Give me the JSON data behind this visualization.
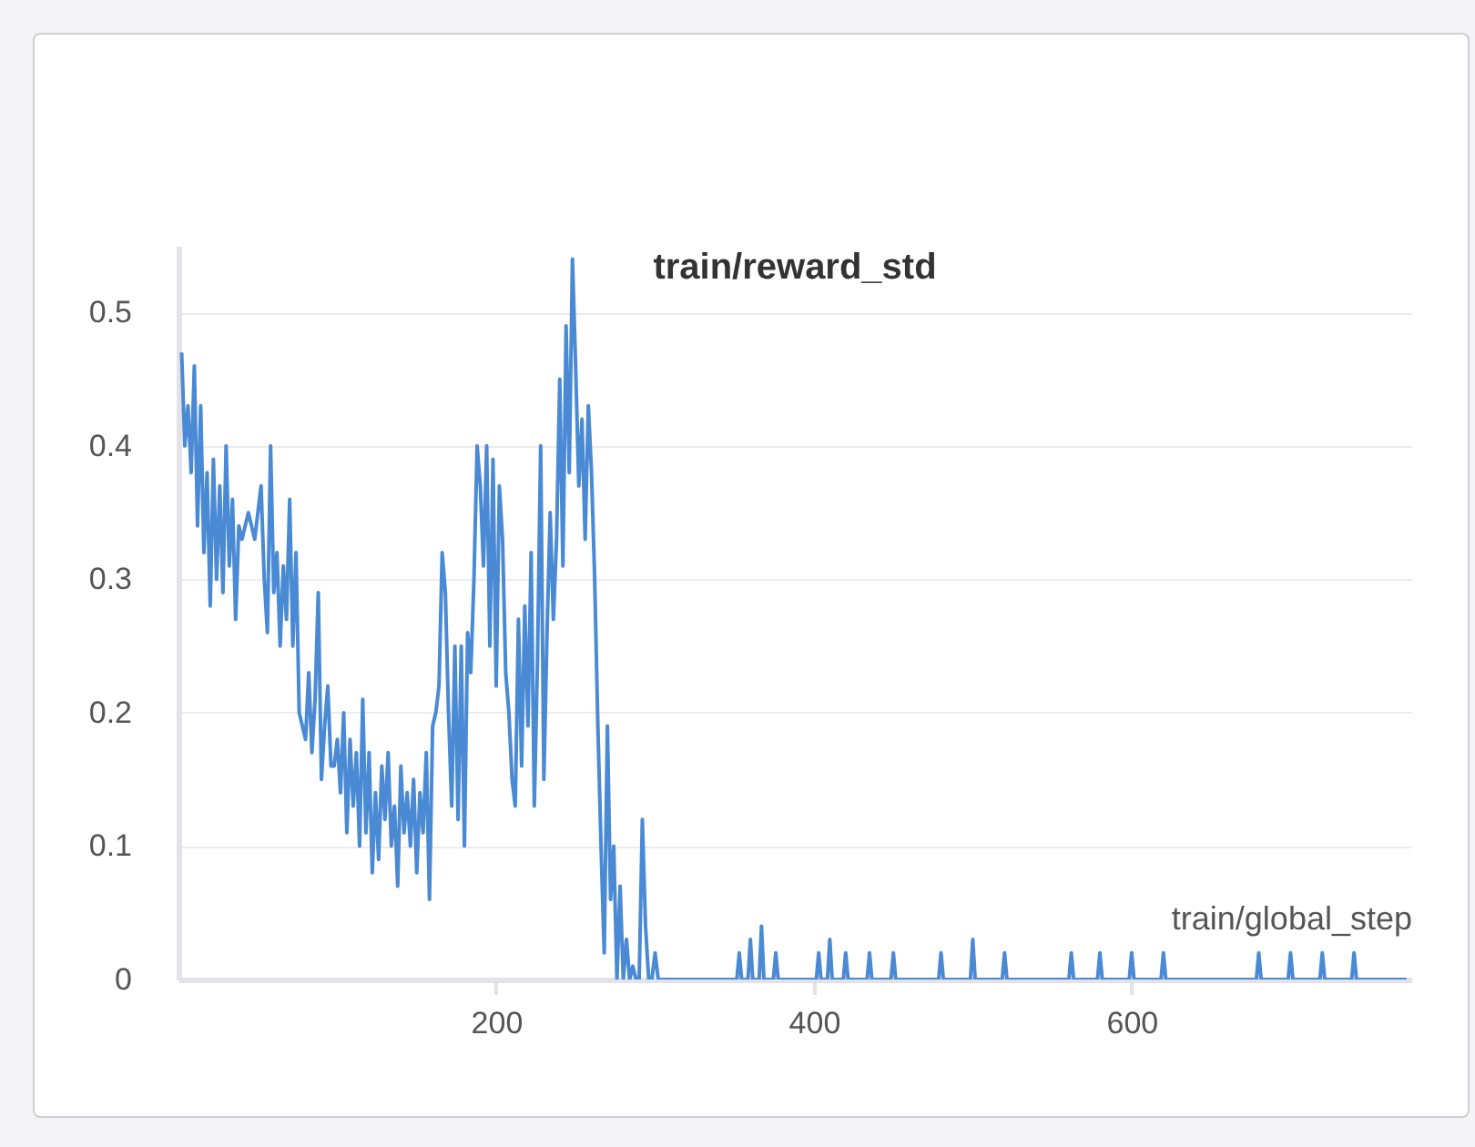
{
  "chart_data": {
    "type": "line",
    "title": "train/reward_std",
    "xlabel": "train/global_step",
    "grid": "y",
    "xlim": [
      0,
      776
    ],
    "ylim": [
      0,
      0.55
    ],
    "xticks": [
      200,
      400,
      600
    ],
    "yticks": [
      0,
      0.1,
      0.2,
      0.3,
      0.4,
      0.5
    ],
    "x": [
      2,
      4,
      6,
      8,
      10,
      12,
      14,
      16,
      18,
      20,
      22,
      24,
      26,
      28,
      30,
      32,
      34,
      36,
      38,
      40,
      44,
      48,
      52,
      54,
      56,
      58,
      60,
      62,
      64,
      66,
      68,
      70,
      72,
      74,
      76,
      78,
      80,
      82,
      84,
      86,
      88,
      90,
      92,
      94,
      96,
      98,
      100,
      102,
      104,
      106,
      108,
      110,
      112,
      114,
      116,
      118,
      120,
      122,
      124,
      126,
      128,
      130,
      132,
      134,
      136,
      138,
      140,
      142,
      144,
      146,
      148,
      150,
      152,
      154,
      156,
      158,
      160,
      162,
      164,
      166,
      168,
      170,
      172,
      174,
      176,
      178,
      180,
      182,
      184,
      186,
      188,
      190,
      192,
      194,
      196,
      198,
      200,
      202,
      204,
      206,
      208,
      210,
      212,
      214,
      216,
      218,
      220,
      222,
      224,
      226,
      228,
      230,
      232,
      234,
      236,
      238,
      240,
      242,
      244,
      246,
      248,
      250,
      252,
      254,
      256,
      258,
      260,
      262,
      264,
      266,
      268,
      270,
      272,
      274,
      276,
      278,
      280,
      282,
      284,
      286,
      288,
      290,
      292,
      294,
      296,
      298,
      300,
      302,
      351.5,
      353,
      354.5,
      358.5,
      360,
      361.5,
      365.5,
      367,
      368.5,
      374.5,
      376,
      377.5,
      401.5,
      403,
      404.5,
      408.5,
      410,
      411.5,
      418.5,
      420,
      421.5,
      433.5,
      435,
      436.5,
      448.5,
      450,
      451.5,
      478.5,
      480,
      481.5,
      498.5,
      500,
      501.5,
      518.5,
      520,
      521.5,
      560.5,
      562,
      563.5,
      578.5,
      580,
      581.5,
      598.5,
      600,
      601.5,
      618.5,
      620,
      621.5,
      678.5,
      680,
      681.5,
      698.5,
      700,
      701.5,
      718.5,
      720,
      721.5,
      738.5,
      740,
      741.5,
      773
    ],
    "series": [
      {
        "color": "#4a8ad4",
        "values": [
          0.47,
          0.4,
          0.43,
          0.38,
          0.46,
          0.34,
          0.43,
          0.32,
          0.38,
          0.28,
          0.39,
          0.3,
          0.37,
          0.29,
          0.4,
          0.31,
          0.36,
          0.27,
          0.34,
          0.33,
          0.35,
          0.33,
          0.37,
          0.3,
          0.26,
          0.4,
          0.29,
          0.32,
          0.25,
          0.31,
          0.27,
          0.36,
          0.25,
          0.32,
          0.2,
          0.19,
          0.18,
          0.23,
          0.17,
          0.21,
          0.29,
          0.15,
          0.19,
          0.22,
          0.16,
          0.16,
          0.18,
          0.14,
          0.2,
          0.11,
          0.18,
          0.13,
          0.17,
          0.1,
          0.21,
          0.11,
          0.17,
          0.08,
          0.14,
          0.09,
          0.16,
          0.12,
          0.17,
          0.1,
          0.13,
          0.07,
          0.16,
          0.11,
          0.14,
          0.1,
          0.15,
          0.08,
          0.14,
          0.11,
          0.17,
          0.06,
          0.19,
          0.2,
          0.22,
          0.32,
          0.29,
          0.2,
          0.13,
          0.25,
          0.12,
          0.25,
          0.1,
          0.26,
          0.23,
          0.3,
          0.4,
          0.37,
          0.31,
          0.4,
          0.25,
          0.39,
          0.22,
          0.37,
          0.33,
          0.23,
          0.2,
          0.15,
          0.13,
          0.27,
          0.16,
          0.28,
          0.19,
          0.32,
          0.13,
          0.24,
          0.4,
          0.15,
          0.26,
          0.35,
          0.27,
          0.33,
          0.45,
          0.31,
          0.49,
          0.38,
          0.54,
          0.46,
          0.37,
          0.42,
          0.33,
          0.43,
          0.38,
          0.3,
          0.19,
          0.1,
          0.02,
          0.19,
          0.06,
          0.1,
          0,
          0.07,
          0,
          0.03,
          0,
          0.01,
          0,
          0,
          0.12,
          0.04,
          0,
          0,
          0.02,
          0,
          0,
          0.02,
          0,
          0,
          0.03,
          0,
          0,
          0.04,
          0,
          0,
          0.02,
          0,
          0,
          0.02,
          0,
          0,
          0.03,
          0,
          0,
          0.02,
          0,
          0,
          0.02,
          0,
          0,
          0.02,
          0,
          0,
          0.02,
          0,
          0,
          0.03,
          0,
          0,
          0.02,
          0,
          0,
          0.02,
          0,
          0,
          0.02,
          0,
          0,
          0.02,
          0,
          0,
          0.02,
          0,
          0,
          0.02,
          0,
          0,
          0.02,
          0,
          0,
          0.02,
          0,
          0,
          0.02,
          0,
          0
        ]
      }
    ]
  }
}
